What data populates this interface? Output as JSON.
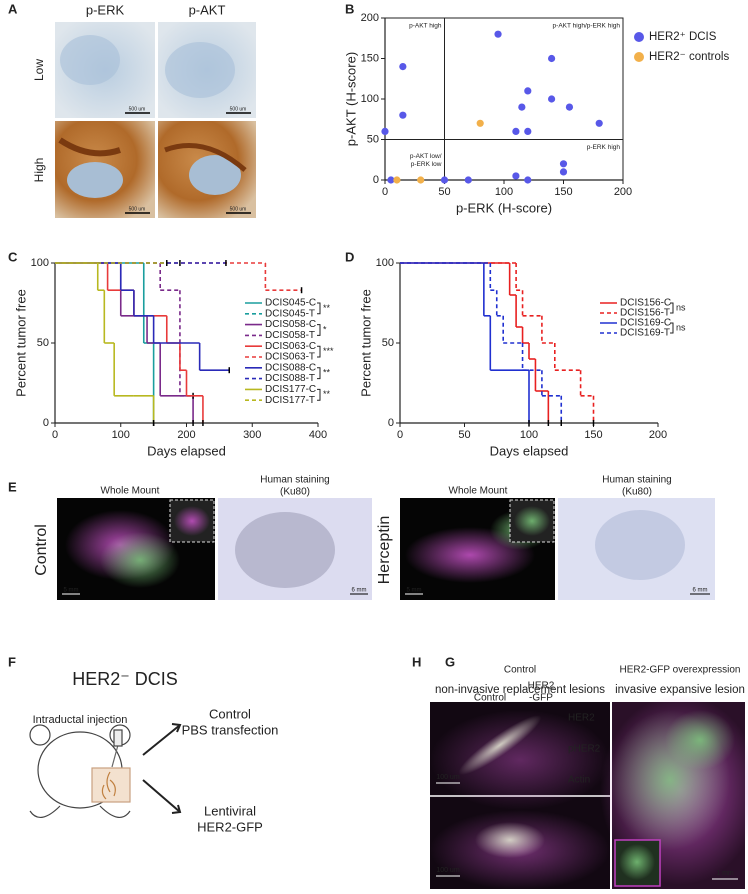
{
  "panel_labels": [
    "A",
    "B",
    "C",
    "D",
    "E",
    "F",
    "G",
    "H"
  ],
  "panel_a": {
    "columns": [
      "p-ERK",
      "p-AKT"
    ],
    "rows": [
      "Low",
      "High"
    ],
    "scale_bars": [
      "500 um",
      "500 um",
      "500 um",
      "500 um"
    ]
  },
  "chart_data": [
    {
      "type": "scatter",
      "xlabel": "p-ERK (H-score)",
      "ylabel": "p-AKT (H-score)",
      "xlim": [
        0,
        200
      ],
      "xticks": [
        0,
        50,
        100,
        150,
        200
      ],
      "ylim": [
        0,
        200
      ],
      "yticks": [
        0,
        50,
        100,
        150,
        200
      ],
      "reference_lines": {
        "x": 50,
        "y": 50
      },
      "quadrant_labels": [
        "p-AKT high",
        "p-AKT high/p-ERK high",
        "p-AKT low/",
        "p-ERK low",
        "p-ERK high"
      ],
      "series": [
        {
          "name": "HER2⁺ DCIS",
          "color": "#5858e8",
          "x": [
            0,
            15,
            15,
            95,
            110,
            115,
            120,
            120,
            140,
            140,
            155,
            180,
            5,
            50,
            70,
            110,
            120,
            150,
            150
          ],
          "values": [
            60,
            140,
            80,
            180,
            60,
            90,
            110,
            60,
            150,
            100,
            90,
            70,
            0,
            0,
            0,
            5,
            0,
            20,
            10
          ]
        },
        {
          "name": "HER2⁻ controls",
          "color": "#f2b04a",
          "x": [
            80,
            10,
            30
          ],
          "values": [
            70,
            0,
            0
          ]
        }
      ]
    },
    {
      "type": "survival",
      "xlabel": "Days elapsed",
      "ylabel": "Percent tumor free",
      "xlim": [
        0,
        400
      ],
      "xticks": [
        0,
        100,
        200,
        300,
        400
      ],
      "ylim": [
        0,
        100
      ],
      "yticks": [
        0,
        50,
        100
      ],
      "series": [
        {
          "name": "DCIS045-C",
          "color": "#1a9e9e",
          "dashed": false,
          "x": [
            0,
            135,
            150
          ],
          "values": [
            100,
            50,
            0
          ]
        },
        {
          "name": "DCIS045-T",
          "color": "#1a9e9e",
          "dashed": true,
          "x": [
            0,
            190
          ],
          "values": [
            100,
            100
          ]
        },
        {
          "name": "DCIS058-C",
          "color": "#7a2a8a",
          "dashed": false,
          "x": [
            0,
            100,
            140,
            160,
            210
          ],
          "values": [
            100,
            67,
            50,
            17,
            0
          ]
        },
        {
          "name": "DCIS058-T",
          "color": "#7a2a8a",
          "dashed": true,
          "x": [
            0,
            160,
            190,
            210
          ],
          "values": [
            100,
            83,
            17,
            17
          ]
        },
        {
          "name": "DCIS063-C",
          "color": "#e83a3a",
          "dashed": false,
          "x": [
            0,
            80,
            120,
            170,
            190,
            200,
            225
          ],
          "values": [
            100,
            83,
            67,
            50,
            33,
            17,
            0
          ]
        },
        {
          "name": "DCIS063-T",
          "color": "#e83a3a",
          "dashed": true,
          "x": [
            0,
            320,
            375
          ],
          "values": [
            100,
            83,
            83
          ]
        },
        {
          "name": "DCIS088-C",
          "color": "#2a2ab8",
          "dashed": false,
          "x": [
            0,
            100,
            120,
            150,
            220,
            265
          ],
          "values": [
            100,
            83,
            67,
            50,
            33,
            33
          ]
        },
        {
          "name": "DCIS088-T",
          "color": "#2a2ab8",
          "dashed": true,
          "x": [
            0,
            260
          ],
          "values": [
            100,
            100
          ]
        },
        {
          "name": "DCIS177-C",
          "color": "#b8b820",
          "dashed": false,
          "x": [
            0,
            65,
            75,
            90,
            120,
            150
          ],
          "values": [
            100,
            83,
            50,
            17,
            17,
            0
          ]
        },
        {
          "name": "DCIS177-T",
          "color": "#b8b820",
          "dashed": true,
          "x": [
            0,
            170
          ],
          "values": [
            100,
            100
          ]
        }
      ],
      "significance": [
        "**",
        "*",
        "***",
        "**",
        "**"
      ]
    },
    {
      "type": "survival",
      "xlabel": "Days elapsed",
      "ylabel": "Percent tumor free",
      "xlim": [
        0,
        200
      ],
      "xticks": [
        0,
        50,
        100,
        150,
        200
      ],
      "ylim": [
        0,
        100
      ],
      "yticks": [
        0,
        50,
        100
      ],
      "series": [
        {
          "name": "DCIS156-C",
          "color": "#e82020",
          "dashed": false,
          "x": [
            0,
            85,
            90,
            95,
            100,
            105,
            115
          ],
          "values": [
            100,
            80,
            60,
            50,
            40,
            20,
            0
          ]
        },
        {
          "name": "DCIS156-T",
          "color": "#e82020",
          "dashed": true,
          "x": [
            0,
            90,
            95,
            110,
            120,
            140,
            150
          ],
          "values": [
            100,
            83,
            67,
            50,
            33,
            17,
            0
          ]
        },
        {
          "name": "DCIS169-C",
          "color": "#2030d0",
          "dashed": false,
          "x": [
            0,
            65,
            70,
            100
          ],
          "values": [
            100,
            67,
            33,
            0
          ]
        },
        {
          "name": "DCIS169-T",
          "color": "#2030d0",
          "dashed": true,
          "x": [
            0,
            70,
            75,
            80,
            95,
            110,
            125
          ],
          "values": [
            100,
            83,
            67,
            50,
            33,
            17,
            0
          ]
        }
      ],
      "significance": [
        "ns",
        "ns"
      ]
    }
  ],
  "panel_e": {
    "conditions": [
      "Control",
      "Herceptin"
    ],
    "whole_mount": "Whole Mount",
    "staining": [
      "Human staining",
      "(Ku80)"
    ],
    "scale_bars": [
      "5 mm",
      "6 mm",
      "5 mm",
      "6 mm"
    ]
  },
  "panel_f": {
    "title": "HER2⁻ DCIS",
    "injection": "Intraductal injection",
    "arms": [
      [
        "Control",
        "PBS transfection"
      ],
      [
        "Lentiviral",
        "HER2-GFP"
      ]
    ]
  },
  "panel_g": {
    "columns": [
      "Control",
      "HER2",
      "-GFP"
    ],
    "rows": [
      "HER2",
      "pHER2",
      "Actin"
    ]
  },
  "panel_h": {
    "left_title": [
      "Control",
      "non-invasive replacement lesions"
    ],
    "right_title": [
      "HER2-GFP overexpression",
      "invasive expansive lesion"
    ],
    "scale_bars": [
      "100 um",
      "100 um",
      "1 mm"
    ]
  }
}
